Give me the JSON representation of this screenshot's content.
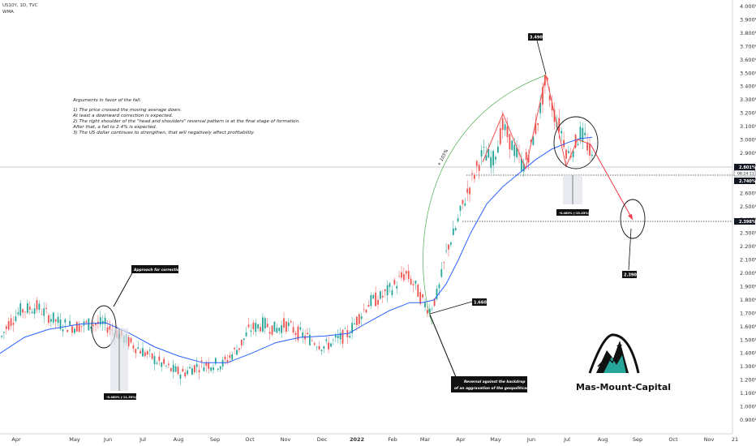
{
  "header": {
    "symbol_line": "US10Y, 1D, TVC",
    "indicator_line": "WMA"
  },
  "notes": {
    "lines": [
      "Arguments in favor of the fall:",
      "",
      "1) The price crossed the moving average down.",
      "    At least a downward correction is expected.",
      "2) The right shoulder of the \"head and shoulders\" reversal pattern is at the final stage of formation.",
      "    After that, a fall to 2.4% is expected.",
      "3) The US dollar continues to strengthen, that will negatively affect profitability."
    ]
  },
  "annotations": {
    "approach_label": "Approach for correction down",
    "reversal_label_line1": "Reversal against the backdrop",
    "reversal_label_line2": "of an aggravation of the geopolitical situation",
    "arc_label": "+ 105%",
    "peak_label": "3.490%",
    "low_label": "1.660%",
    "target_label": "2.390%",
    "measure_left": "-0.460% (-11.39%) -460",
    "measure_right": "-0.460% (-15.45%) -460"
  },
  "price_tags": {
    "current_price": "2.801%",
    "current_countdown": "08:24:11",
    "neckline_price": "2.740%",
    "target_price": "2.398%",
    "colors": {
      "current": "#131722",
      "neckline": "#131722",
      "target": "#131722"
    }
  },
  "brand": {
    "name": "Mas-Mount-Capital"
  },
  "colors": {
    "up": "#26a69a",
    "down": "#ef5350",
    "wma": "#2962ff",
    "arc": "#4caf50",
    "projection": "#f23645"
  },
  "chart_data": {
    "type": "candlestick",
    "title": "US10Y, 1D, TVC",
    "series": [
      {
        "name": "US10Y",
        "kind": "candles"
      },
      {
        "name": "WMA",
        "kind": "line"
      }
    ],
    "y_ticks": [
      "4.000%",
      "3.900%",
      "3.800%",
      "3.700%",
      "3.600%",
      "3.500%",
      "3.400%",
      "3.300%",
      "3.200%",
      "3.100%",
      "3.000%",
      "2.900%",
      "2.800%",
      "2.700%",
      "2.600%",
      "2.500%",
      "2.400%",
      "2.300%",
      "2.200%",
      "2.100%",
      "2.000%",
      "1.900%",
      "1.800%",
      "1.700%",
      "1.600%",
      "1.500%",
      "1.400%",
      "1.300%",
      "1.200%",
      "1.100%",
      "1.000%",
      "0.900%"
    ],
    "y_tick_values": [
      4.0,
      3.9,
      3.8,
      3.7,
      3.6,
      3.5,
      3.4,
      3.3,
      3.2,
      3.1,
      3.0,
      2.9,
      2.8,
      2.7,
      2.6,
      2.5,
      2.4,
      2.3,
      2.2,
      2.1,
      2.0,
      1.9,
      1.8,
      1.7,
      1.6,
      1.5,
      1.4,
      1.3,
      1.2,
      1.1,
      1.0,
      0.9
    ],
    "ylim": [
      0.86,
      4.03
    ],
    "x_ticks": [
      "Apr",
      "May",
      "Jun",
      "Jul",
      "Aug",
      "Sep",
      "Oct",
      "Nov",
      "Dec",
      "2022",
      "Feb",
      "Mar",
      "Apr",
      "May",
      "Jun",
      "Jul",
      "Aug",
      "Sep",
      "Oct",
      "Nov",
      "21"
    ],
    "price_key_points": [
      [
        "Mar 2021",
        1.62
      ],
      [
        "Apr 2021",
        1.72
      ],
      [
        "May 2021",
        1.6
      ],
      [
        "Jun 2021",
        1.55
      ],
      [
        "Jul 2021",
        1.4
      ],
      [
        "Aug 2021",
        1.22
      ],
      [
        "Sep 2021",
        1.33
      ],
      [
        "Oct 2021",
        1.62
      ],
      [
        "Nov 2021",
        1.55
      ],
      [
        "Dec 2021",
        1.48
      ],
      [
        "Jan 2022",
        1.75
      ],
      [
        "Feb 2022",
        1.95
      ],
      [
        "Mar 2022",
        1.73
      ],
      [
        "Apr 2022",
        2.75
      ],
      [
        "May 2022",
        3.13
      ],
      [
        "mid May 2022",
        2.85
      ],
      [
        "Jun 2022",
        2.95
      ],
      [
        "mid Jun 2022",
        3.49
      ],
      [
        "early Jul 2022",
        2.85
      ],
      [
        "mid Jul 2022",
        3.05
      ],
      [
        "late Jul 2022",
        2.8
      ]
    ],
    "wma_key_points": [
      [
        "Mar 2021",
        1.4
      ],
      [
        "Jun 2021",
        1.62
      ],
      [
        "Jul 2021",
        1.45
      ],
      [
        "Aug 2021",
        1.32
      ],
      [
        "Oct 2021",
        1.4
      ],
      [
        "Nov 2021",
        1.52
      ],
      [
        "Jan 2022",
        1.58
      ],
      [
        "Feb 2022",
        1.78
      ],
      [
        "Mar 2022",
        1.72
      ],
      [
        "Apr 2022",
        2.35
      ],
      [
        "May 2022",
        2.7
      ],
      [
        "Jun 2022",
        2.9
      ],
      [
        "Jul 2022",
        3.0
      ],
      [
        "late Jul 2022",
        3.03
      ]
    ],
    "levels": {
      "current": 2.801,
      "neckline": 2.74,
      "target": 2.398
    },
    "xlabel": "",
    "ylabel": "",
    "legend": "none",
    "grid": false
  }
}
